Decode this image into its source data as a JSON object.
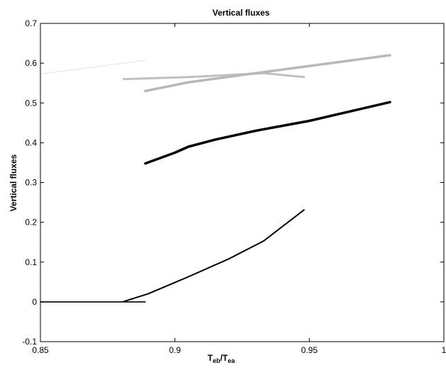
{
  "chart_data": {
    "type": "line",
    "title": "Vertical fluxes",
    "xlabel": {
      "main": "T",
      "sub1": "eb",
      "sep": "/T",
      "sub2": "ea"
    },
    "ylabel": "Vertical fluxes",
    "xlim": [
      0.85,
      1.0
    ],
    "ylim": [
      -0.1,
      0.7
    ],
    "xticks": [
      0.85,
      0.9,
      0.95,
      1.0
    ],
    "xtick_labels": [
      "0.85",
      "0.9",
      "0.95",
      "1"
    ],
    "yticks": [
      -0.1,
      0,
      0.1,
      0.2,
      0.3,
      0.4,
      0.5,
      0.6,
      0.7
    ],
    "ytick_labels": [
      "-0.1",
      "0",
      "0.1",
      "0.2",
      "0.3",
      "0.4",
      "0.5",
      "0.6",
      "0.7"
    ],
    "grid": false,
    "series": [
      {
        "color": "#e6e6e6",
        "width": 1.2,
        "x": [
          0.85,
          0.889
        ],
        "y": [
          0.573,
          0.607
        ]
      },
      {
        "color": "#c0c0c0",
        "width": 3,
        "x": [
          0.881,
          0.905,
          0.933,
          0.948
        ],
        "y": [
          0.56,
          0.565,
          0.575,
          0.565
        ]
      },
      {
        "color": "#b8b8b8",
        "width": 3.5,
        "x": [
          0.889,
          0.905,
          0.93,
          0.95,
          0.98
        ],
        "y": [
          0.53,
          0.552,
          0.575,
          0.593,
          0.62
        ]
      },
      {
        "color": "#000000",
        "width": 3.5,
        "x": [
          0.889,
          0.9,
          0.905,
          0.915,
          0.93,
          0.95,
          0.98
        ],
        "y": [
          0.348,
          0.375,
          0.39,
          0.408,
          0.43,
          0.455,
          0.502
        ]
      },
      {
        "color": "#000000",
        "width": 1.6,
        "x": [
          0.85,
          0.889
        ],
        "y": [
          0.0,
          0.0
        ]
      },
      {
        "color": "#000000",
        "width": 2,
        "x": [
          0.881,
          0.89,
          0.905,
          0.92,
          0.933,
          0.948
        ],
        "y": [
          0.001,
          0.02,
          0.063,
          0.108,
          0.153,
          0.231
        ]
      }
    ]
  }
}
